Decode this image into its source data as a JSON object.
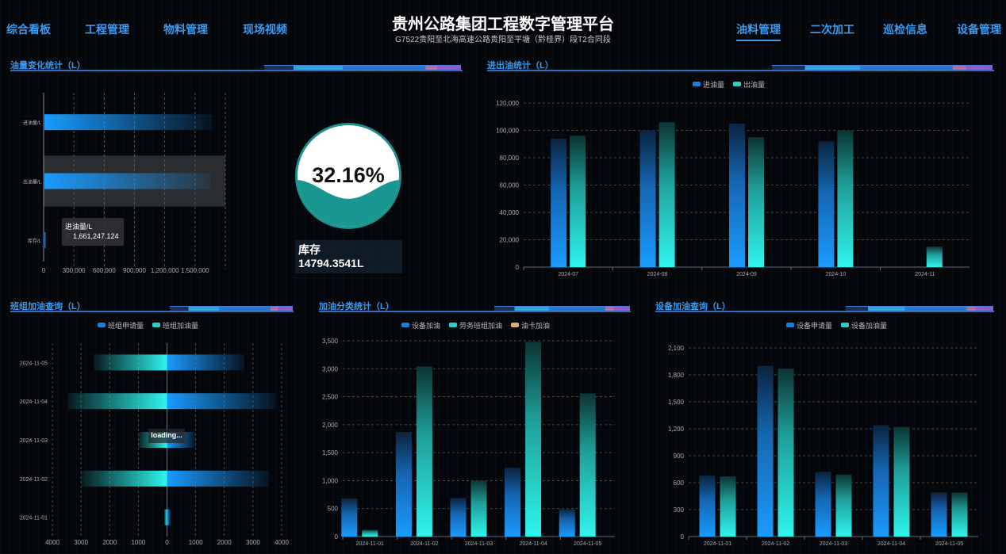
{
  "header": {
    "title": "贵州公路集团工程数字管理平台",
    "subtitle": "G7522贵阳至北海高速公路贵阳至平塘（黔桂界）段T2合同段",
    "nav_left": [
      "综合看板",
      "工程管理",
      "物料管理",
      "现场视频"
    ],
    "nav_right": [
      "油料管理",
      "二次加工",
      "巡检信息",
      "设备管理"
    ],
    "active_nav": "油料管理"
  },
  "panels": {
    "oil_change": {
      "title": "油量变化统计（L）"
    },
    "in_out": {
      "title": "进出油统计（L）"
    },
    "team": {
      "title": "班组加油查询（L）"
    },
    "category": {
      "title": "加油分类统计（L）"
    },
    "equipment": {
      "title": "设备加油查询（L）"
    }
  },
  "gauge": {
    "percent_label": "32.16%",
    "percent": 32.16,
    "stock_label": "库存",
    "stock_value": "14794.3541L"
  },
  "tooltip": {
    "series": "进油量/L",
    "value": "1,661,247.124"
  },
  "loading_text": "loading...",
  "colors": {
    "blue": "#1a9bff",
    "cyan": "#2ff5ee",
    "gold": "#d8b070",
    "teal": "#1a9690",
    "accent": "#3a9bf0"
  },
  "chart_data": [
    {
      "id": "oil_change",
      "type": "bar",
      "orientation": "horizontal",
      "categories": [
        "进油量/L",
        "出油量/L",
        "库存/L"
      ],
      "values": [
        1661247.124,
        1646000,
        14794.3541
      ],
      "xlim": [
        0,
        1800000
      ],
      "xticks": [
        "0",
        "300,000",
        "600,000",
        "900,000",
        "1,200,000",
        "1,500,000"
      ],
      "highlighted": "出油量/L",
      "grid": true
    },
    {
      "id": "in_out",
      "type": "bar",
      "categories": [
        "2024-07",
        "2024-08",
        "2024-09",
        "2024-10",
        "2024-11"
      ],
      "series": [
        {
          "name": "进油量",
          "values": [
            94000,
            100000,
            105000,
            92000,
            0
          ]
        },
        {
          "name": "出油量",
          "values": [
            96000,
            106000,
            95000,
            100000,
            15000
          ]
        }
      ],
      "ylim": [
        0,
        120000
      ],
      "yticks": [
        "0",
        "20,000",
        "40,000",
        "60,000",
        "80,000",
        "100,000",
        "120,000"
      ],
      "legend": "top",
      "grid": true
    },
    {
      "id": "team",
      "type": "bar",
      "orientation": "horizontal-butterfly",
      "categories": [
        "2024-11-05",
        "2024-11-04",
        "2024-11-03",
        "2024-11-02",
        "2024-11-01"
      ],
      "series": [
        {
          "name": "班组申请量",
          "side": "right",
          "values": [
            2700,
            3800,
            1000,
            3550,
            130
          ]
        },
        {
          "name": "班组加油量",
          "side": "left",
          "values": [
            2550,
            3450,
            1000,
            3000,
            100
          ]
        }
      ],
      "xlim": [
        -4000,
        4000
      ],
      "xticks": [
        "4000",
        "3000",
        "2000",
        "1000",
        "0",
        "1000",
        "2000",
        "3000",
        "4000"
      ],
      "legend": "top",
      "grid": true
    },
    {
      "id": "category",
      "type": "bar",
      "categories": [
        "2024-11-01",
        "2024-11-02",
        "2024-11-03",
        "2024-11-04",
        "2024-11-05"
      ],
      "series": [
        {
          "name": "设备加油",
          "values": [
            680,
            1870,
            690,
            1230,
            490
          ]
        },
        {
          "name": "劳务班组加油",
          "values": [
            120,
            3040,
            1000,
            3480,
            2560
          ]
        },
        {
          "name": "油卡加油",
          "values": [
            0,
            0,
            0,
            0,
            0
          ]
        }
      ],
      "ylim": [
        0,
        3500
      ],
      "yticks": [
        "0",
        "500",
        "1,000",
        "1,500",
        "2,000",
        "2,500",
        "3,000",
        "3,500"
      ],
      "legend": "top",
      "grid": true
    },
    {
      "id": "equipment",
      "type": "bar",
      "categories": [
        "2024-11-01",
        "2024-11-02",
        "2024-11-03",
        "2024-11-04",
        "2024-11-05"
      ],
      "series": [
        {
          "name": "设备申请量",
          "values": [
            680,
            1900,
            720,
            1240,
            490
          ]
        },
        {
          "name": "设备加油量",
          "values": [
            670,
            1870,
            690,
            1220,
            490
          ]
        }
      ],
      "ylim": [
        0,
        2100
      ],
      "yticks": [
        "0",
        "300",
        "600",
        "900",
        "1,200",
        "1,500",
        "1,800",
        "2,100"
      ],
      "legend": "top",
      "grid": true
    }
  ]
}
